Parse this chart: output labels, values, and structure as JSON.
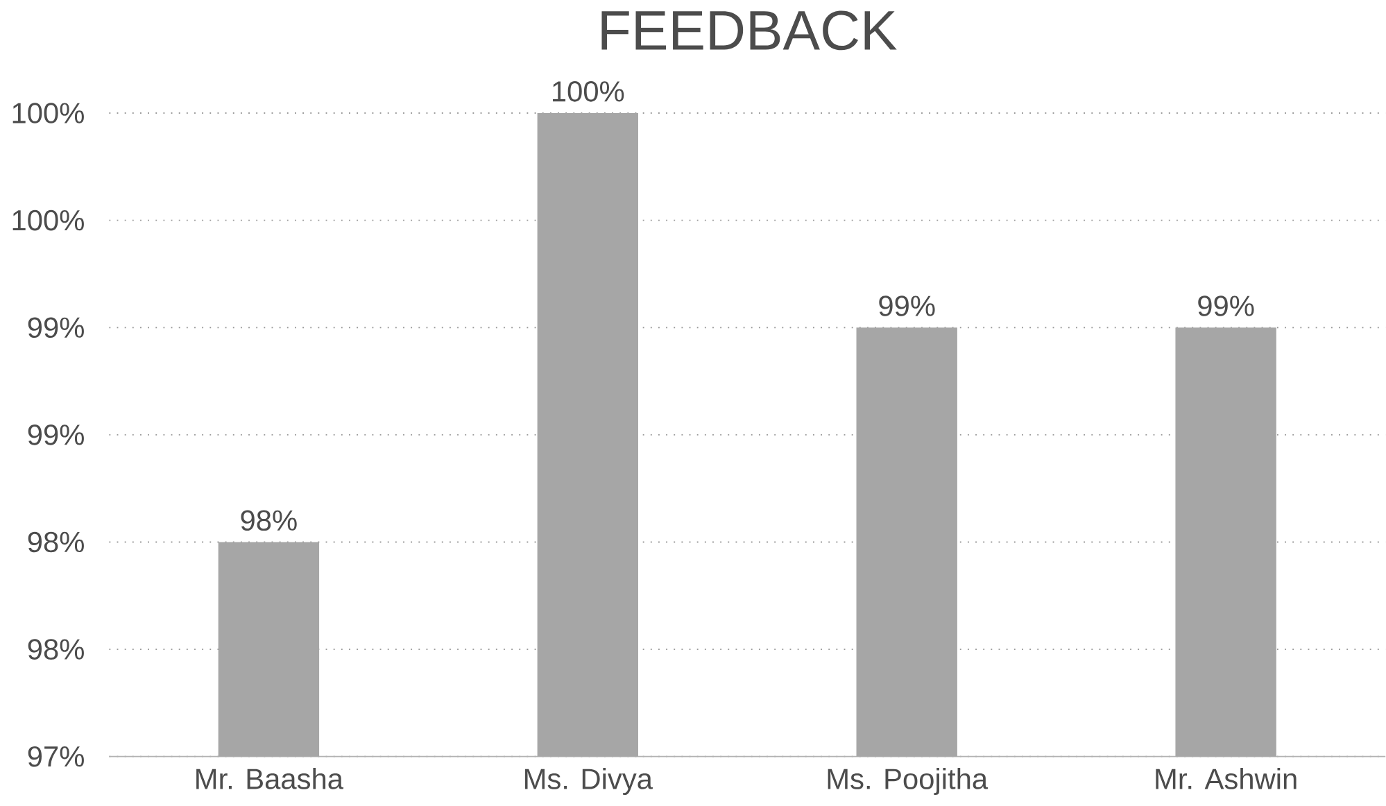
{
  "chart_data": {
    "type": "bar",
    "title": "FEEDBACK",
    "categories": [
      "Mr. Baasha",
      "Ms. Divya",
      "Ms. Poojitha",
      "Mr. Ashwin"
    ],
    "values": [
      98,
      100,
      99,
      99
    ],
    "color": "#a6a6a6",
    "value_labels": [
      "98%",
      "100%",
      "99%",
      "99%"
    ],
    "ylim": [
      97,
      100
    ],
    "yticks": [
      {
        "value": 97,
        "label": "97%"
      },
      {
        "value": 97.5,
        "label": "98%"
      },
      {
        "value": 98,
        "label": "98%"
      },
      {
        "value": 98.5,
        "label": "99%"
      },
      {
        "value": 99,
        "label": "99%"
      },
      {
        "value": 99.5,
        "label": "100%"
      },
      {
        "value": 100,
        "label": "100%"
      }
    ],
    "grid": "y"
  }
}
